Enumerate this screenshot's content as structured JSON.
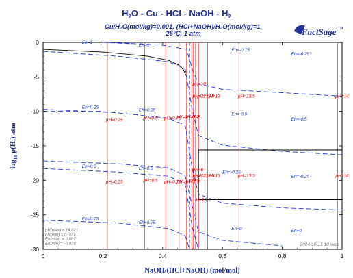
{
  "chart_data": {
    "type": "line",
    "title_parts": [
      "H",
      "2",
      "O - Cu - HCl - NaOH - H",
      "2"
    ],
    "subtitle_line1": "Cu/H₂O(mol/kg)=0.001, (HCl+NaOH)/H₂O(mol/kg)=1,",
    "subtitle_line2": "25°C, 1 atm",
    "xlabel": "NaOH/(HCl+NaOH) (mol/mol)",
    "ylabel_main": "log",
    "ylabel_sub": "10",
    "ylabel_rest": " p(H₂) atm",
    "xlim": [
      0,
      1
    ],
    "ylim": [
      -30,
      0
    ],
    "x_ticks": [
      0,
      0.2,
      0.4,
      0.6,
      0.8,
      1
    ],
    "x_tick_labels": [
      "0",
      "0.2",
      "0.4",
      "0.6",
      "0.8",
      "1"
    ],
    "y_ticks": [
      0,
      -5,
      -10,
      -15,
      -20,
      -25,
      -30
    ],
    "y_tick_labels": [
      "0",
      "-5",
      "-10",
      "-15",
      "-20",
      "-25",
      "-30"
    ],
    "colors": {
      "eh": "#2233dd",
      "ph": "#ee2222",
      "boundary": "#000000",
      "title": "#1f2e9c"
    },
    "ph_lines": [
      {
        "x": 0.215,
        "label": "pH=0.25"
      },
      {
        "x": 0.34,
        "label": "pH=0.5"
      },
      {
        "x": 0.41,
        "label": "pH=0.75"
      },
      {
        "x": 0.455,
        "label": "pH=1"
      },
      {
        "x": 0.48,
        "label": "pH=1.5"
      },
      {
        "x": 0.497,
        "label": "pH=2"
      },
      {
        "x": 0.503,
        "label": "pH=10"
      },
      {
        "x": 0.51,
        "label": "pH=12"
      },
      {
        "x": 0.52,
        "label": "pH=12.5"
      },
      {
        "x": 0.55,
        "label": "pH=13"
      },
      {
        "x": 0.655,
        "label": "pH=13.5"
      },
      {
        "x": 0.985,
        "label": "pH=14"
      }
    ],
    "ph_labels_row1": [
      {
        "x": 0.21,
        "y": -11.4,
        "text": "pH=0.25"
      },
      {
        "x": 0.335,
        "y": -11.2,
        "text": "pH=0.5"
      },
      {
        "x": 0.405,
        "y": -11.2,
        "text": "pH=0.75"
      },
      {
        "x": 0.447,
        "y": -11.0,
        "text": "pH=1"
      },
      {
        "x": 0.474,
        "y": -11.0,
        "text": "pH=1.5"
      },
      {
        "x": 0.49,
        "y": -11.0,
        "text": "pH=2"
      },
      {
        "x": 0.5,
        "y": -6.2,
        "text": "pH=10"
      },
      {
        "x": 0.5,
        "y": -8.0,
        "text": "pH=12"
      },
      {
        "x": 0.516,
        "y": -8.0,
        "text": "pH=12.5"
      },
      {
        "x": 0.548,
        "y": -8.0,
        "text": "pH=13"
      },
      {
        "x": 0.652,
        "y": -8.0,
        "text": "pH=13.5"
      },
      {
        "x": 0.978,
        "y": -8.0,
        "text": "pH=14"
      }
    ],
    "ph_labels_row2": [
      {
        "x": 0.21,
        "y": -20.4,
        "text": "pH=0.25"
      },
      {
        "x": 0.335,
        "y": -20.2,
        "text": "pH=0.5"
      },
      {
        "x": 0.405,
        "y": -20.4,
        "text": "pH=0.75"
      },
      {
        "x": 0.447,
        "y": -20.4,
        "text": "pH=1"
      },
      {
        "x": 0.474,
        "y": -20.4,
        "text": "pH=1.5"
      },
      {
        "x": 0.49,
        "y": -20.2,
        "text": "pH=2"
      },
      {
        "x": 0.5,
        "y": -18.7,
        "text": "pH=6"
      },
      {
        "x": 0.5,
        "y": -19.5,
        "text": "pH=12"
      },
      {
        "x": 0.516,
        "y": -19.5,
        "text": "pH=12.5"
      },
      {
        "x": 0.548,
        "y": -19.5,
        "text": "pH=13"
      },
      {
        "x": 0.652,
        "y": -19.5,
        "text": "pH=13.5"
      },
      {
        "x": 0.978,
        "y": -19.5,
        "text": "pH=14"
      },
      {
        "x": 0.503,
        "y": -23.0,
        "text": "pH=10"
      }
    ],
    "eh_lines": [
      {
        "name": "Eh=-0.75",
        "points": [
          [
            0.22,
            0
          ],
          [
            0.4,
            -0.4
          ],
          [
            0.48,
            -1.0
          ],
          [
            0.5,
            -4.0
          ],
          [
            0.52,
            -6.0
          ],
          [
            0.6,
            -6.8
          ],
          [
            0.8,
            -7.3
          ],
          [
            1.0,
            -7.8
          ]
        ]
      },
      {
        "name": "Eh=-0.5",
        "points": [
          [
            0.0,
            -1.3
          ],
          [
            0.25,
            -2.0
          ],
          [
            0.42,
            -2.8
          ],
          [
            0.475,
            -3.8
          ],
          [
            0.5,
            -10.0
          ],
          [
            0.52,
            -13.5
          ],
          [
            0.6,
            -14.9
          ],
          [
            0.8,
            -15.8
          ],
          [
            1.0,
            -16.3
          ]
        ]
      },
      {
        "name": "Eh=-0.25",
        "points": [
          [
            0.0,
            -9.7
          ],
          [
            0.25,
            -10.2
          ],
          [
            0.42,
            -11.0
          ],
          [
            0.475,
            -12.0
          ],
          [
            0.5,
            -18.5
          ],
          [
            0.52,
            -22.0
          ],
          [
            0.6,
            -23.3
          ],
          [
            0.8,
            -24.0
          ],
          [
            1.0,
            -24.3
          ]
        ]
      },
      {
        "name": "Eh=0",
        "points": [
          [
            0.0,
            -18.3
          ],
          [
            0.25,
            -18.8
          ],
          [
            0.42,
            -19.4
          ],
          [
            0.475,
            -20.5
          ],
          [
            0.5,
            -27.0
          ],
          [
            0.52,
            -30.0
          ]
        ]
      },
      {
        "name": "Eh=0.25",
        "points": [
          [
            0.0,
            -10.0
          ],
          [
            0.2,
            -10.0
          ]
        ]
      },
      {
        "name": "Eh=0.5",
        "points": [
          [
            0.0,
            -17.2
          ],
          [
            0.25,
            -17.6
          ],
          [
            0.42,
            -18.2
          ],
          [
            0.475,
            -19.3
          ],
          [
            0.5,
            -24.0
          ],
          [
            0.52,
            -27.5
          ],
          [
            0.6,
            -28.7
          ],
          [
            0.8,
            -29.5
          ]
        ]
      },
      {
        "name": "Eh=0.75",
        "points": [
          [
            0.0,
            -25.8
          ],
          [
            0.25,
            -26.2
          ],
          [
            0.42,
            -27.0
          ],
          [
            0.475,
            -28.0
          ],
          [
            0.49,
            -30.0
          ]
        ]
      },
      {
        "name": "Eh=1",
        "points": [
          [
            0.2,
            0
          ],
          [
            0.3,
            -0.2
          ]
        ]
      }
    ],
    "eh_labels": [
      {
        "x": 0.32,
        "y": -0.6,
        "text": "Eh=1"
      },
      {
        "x": 0.13,
        "y": -0.2,
        "text": "Eh=1"
      },
      {
        "x": 0.63,
        "y": -1.3,
        "text": "Eh=-0.75"
      },
      {
        "x": 0.83,
        "y": -1.9,
        "text": "Eh=-0.75"
      },
      {
        "x": 0.13,
        "y": -9.6,
        "text": "Eh=0.25"
      },
      {
        "x": 0.32,
        "y": -10.0,
        "text": "Eh=0.25"
      },
      {
        "x": 0.63,
        "y": -10.6,
        "text": "Eh=-0.5"
      },
      {
        "x": 0.83,
        "y": -11.3,
        "text": "Eh=-0.5"
      },
      {
        "x": 0.13,
        "y": -18.2,
        "text": "Eh=0.5"
      },
      {
        "x": 0.32,
        "y": -18.5,
        "text": "Eh=0.5"
      },
      {
        "x": 0.6,
        "y": -19.0,
        "text": "Eh=-0.25"
      },
      {
        "x": 0.83,
        "y": -19.6,
        "text": "Eh=-0.25"
      },
      {
        "x": 0.13,
        "y": -25.8,
        "text": "Eh=0.75"
      },
      {
        "x": 0.32,
        "y": -26.3,
        "text": "Eh=0.75"
      },
      {
        "x": 0.63,
        "y": -27.2,
        "text": "Eh=0"
      },
      {
        "x": 0.83,
        "y": -27.5,
        "text": "Eh=0"
      }
    ],
    "boundaries": [
      {
        "points": [
          [
            0.0,
            -1.0
          ],
          [
            0.2,
            -1.4
          ],
          [
            0.35,
            -2.0
          ],
          [
            0.42,
            -2.6
          ],
          [
            0.455,
            -3.3
          ],
          [
            0.47,
            -4.0
          ],
          [
            0.478,
            -4.8
          ]
        ]
      },
      {
        "points": [
          [
            0.52,
            -15.6
          ],
          [
            1.0,
            -15.6
          ]
        ]
      },
      {
        "points": [
          [
            0.52,
            -22.8
          ],
          [
            1.0,
            -22.8
          ]
        ]
      },
      {
        "points": [
          [
            0.52,
            -15.6
          ],
          [
            0.52,
            -22.8
          ]
        ]
      }
    ],
    "center_marker": {
      "x": 0.503,
      "label": "pH=6"
    },
    "stats": [
      "pH(max)  = 14.021",
      "pH(min)  = 0.000",
      "Eh(max) = 0.887",
      "Eh(min) = -0.830"
    ],
    "timestamp": "2024-10-15  10 secs",
    "logo_text": "FactSage",
    "logo_tm": "TM"
  }
}
